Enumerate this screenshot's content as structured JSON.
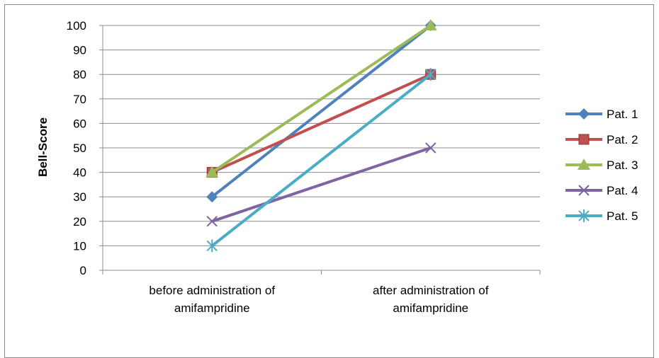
{
  "chart_data": {
    "type": "line",
    "title": "",
    "xlabel": "",
    "ylabel": "Bell-Score",
    "ylim": [
      0,
      100
    ],
    "yticks": [
      0,
      10,
      20,
      30,
      40,
      50,
      60,
      70,
      80,
      90,
      100
    ],
    "categories": [
      [
        "before administration of",
        "amifampridine"
      ],
      [
        "after administration of",
        "amifampridine"
      ]
    ],
    "grid": true,
    "legend_position": "right",
    "series": [
      {
        "name": "Pat. 1",
        "values": [
          30,
          100
        ],
        "color": "#4F81BD",
        "marker": "diamond"
      },
      {
        "name": "Pat. 2",
        "values": [
          40,
          80
        ],
        "color": "#C0504D",
        "marker": "square"
      },
      {
        "name": "Pat. 3",
        "values": [
          40,
          100
        ],
        "color": "#9BBB59",
        "marker": "triangle"
      },
      {
        "name": "Pat. 4",
        "values": [
          20,
          50
        ],
        "color": "#8064A2",
        "marker": "x"
      },
      {
        "name": "Pat. 5",
        "values": [
          10,
          80
        ],
        "color": "#4BACC6",
        "marker": "star"
      }
    ]
  }
}
